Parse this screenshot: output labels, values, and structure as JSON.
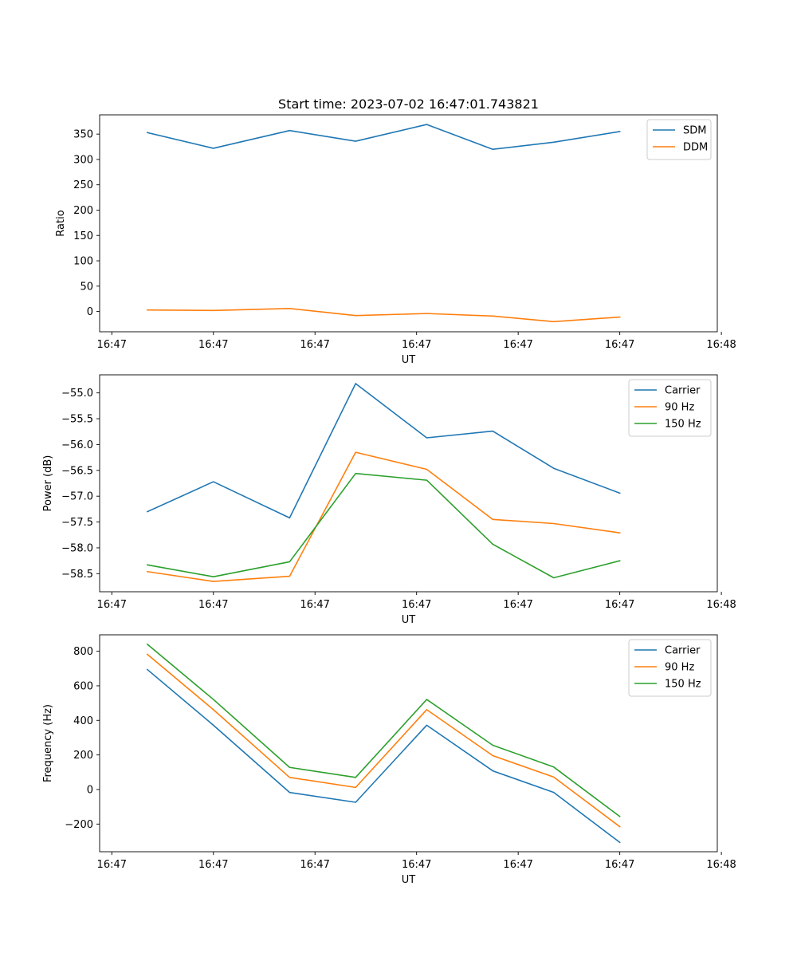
{
  "chart_data": [
    {
      "type": "line",
      "title": "Start time: 2023-07-02 16:47:01.743821",
      "xlabel": "UT",
      "ylabel": "Ratio",
      "xlim": [
        -0.12,
        5.96
      ],
      "ylim": [
        -40,
        388
      ],
      "x": [
        0.35,
        1.0,
        1.75,
        2.4,
        3.1,
        3.75,
        4.35,
        5.0
      ],
      "xticks": [
        0,
        1,
        2,
        3,
        4,
        5,
        6
      ],
      "xticklabels": [
        "16:47",
        "16:47",
        "16:47",
        "16:47",
        "16:47",
        "16:47",
        "16:48"
      ],
      "yticks": [
        0,
        50,
        100,
        150,
        200,
        250,
        300,
        350
      ],
      "yticklabels": [
        "0",
        "50",
        "100",
        "150",
        "200",
        "250",
        "300",
        "350"
      ],
      "legend_position": "top-right",
      "series": [
        {
          "name": "SDM",
          "color": "#1f77b4",
          "values": [
            353,
            322,
            357,
            336,
            369,
            320,
            334,
            355
          ]
        },
        {
          "name": "DDM",
          "color": "#ff7f0e",
          "values": [
            3,
            2,
            6,
            -8,
            -4,
            -9,
            -20,
            -11
          ]
        }
      ]
    },
    {
      "type": "line",
      "title": "",
      "xlabel": "UT",
      "ylabel": "Power (dB)",
      "xlim": [
        -0.12,
        5.96
      ],
      "ylim": [
        -58.85,
        -54.65
      ],
      "x": [
        0.35,
        1.0,
        1.75,
        2.4,
        3.1,
        3.75,
        4.35,
        5.0
      ],
      "xticks": [
        0,
        1,
        2,
        3,
        4,
        5,
        6
      ],
      "xticklabels": [
        "16:47",
        "16:47",
        "16:47",
        "16:47",
        "16:47",
        "16:47",
        "16:48"
      ],
      "yticks": [
        -58.5,
        -58.0,
        -57.5,
        -57.0,
        -56.5,
        -56.0,
        -55.5,
        -55.0
      ],
      "yticklabels": [
        "−58.5",
        "−58.0",
        "−57.5",
        "−57.0",
        "−56.5",
        "−56.0",
        "−55.5",
        "−55.0"
      ],
      "legend_position": "top-right",
      "series": [
        {
          "name": "Carrier",
          "color": "#1f77b4",
          "values": [
            -57.3,
            -56.72,
            -57.42,
            -54.82,
            -55.87,
            -55.74,
            -56.46,
            -56.94
          ]
        },
        {
          "name": "90 Hz",
          "color": "#ff7f0e",
          "values": [
            -58.46,
            -58.65,
            -58.55,
            -56.15,
            -56.48,
            -57.45,
            -57.53,
            -57.71
          ]
        },
        {
          "name": "150 Hz",
          "color": "#2ca02c",
          "values": [
            -58.33,
            -58.56,
            -58.27,
            -56.56,
            -56.69,
            -57.93,
            -58.58,
            -58.25
          ]
        }
      ]
    },
    {
      "type": "line",
      "title": "",
      "xlabel": "UT",
      "ylabel": "Frequency (Hz)",
      "xlim": [
        -0.12,
        5.96
      ],
      "ylim": [
        -360,
        895
      ],
      "x": [
        0.35,
        1.0,
        1.75,
        2.4,
        3.1,
        3.75,
        4.35,
        5.0
      ],
      "xticks": [
        0,
        1,
        2,
        3,
        4,
        5,
        6
      ],
      "xticklabels": [
        "16:47",
        "16:47",
        "16:47",
        "16:47",
        "16:47",
        "16:47",
        "16:48"
      ],
      "yticks": [
        -200,
        0,
        200,
        400,
        600,
        800
      ],
      "yticklabels": [
        "−200",
        "0",
        "200",
        "400",
        "600",
        "800"
      ],
      "legend_position": "top-right",
      "series": [
        {
          "name": "Carrier",
          "color": "#1f77b4",
          "values": [
            694,
            372,
            -17,
            -74,
            372,
            108,
            -17,
            -306
          ]
        },
        {
          "name": "90 Hz",
          "color": "#ff7f0e",
          "values": [
            782,
            462,
            70,
            12,
            462,
            196,
            72,
            -215
          ]
        },
        {
          "name": "150 Hz",
          "color": "#2ca02c",
          "values": [
            840,
            521,
            128,
            70,
            521,
            256,
            130,
            -156
          ]
        }
      ]
    }
  ]
}
